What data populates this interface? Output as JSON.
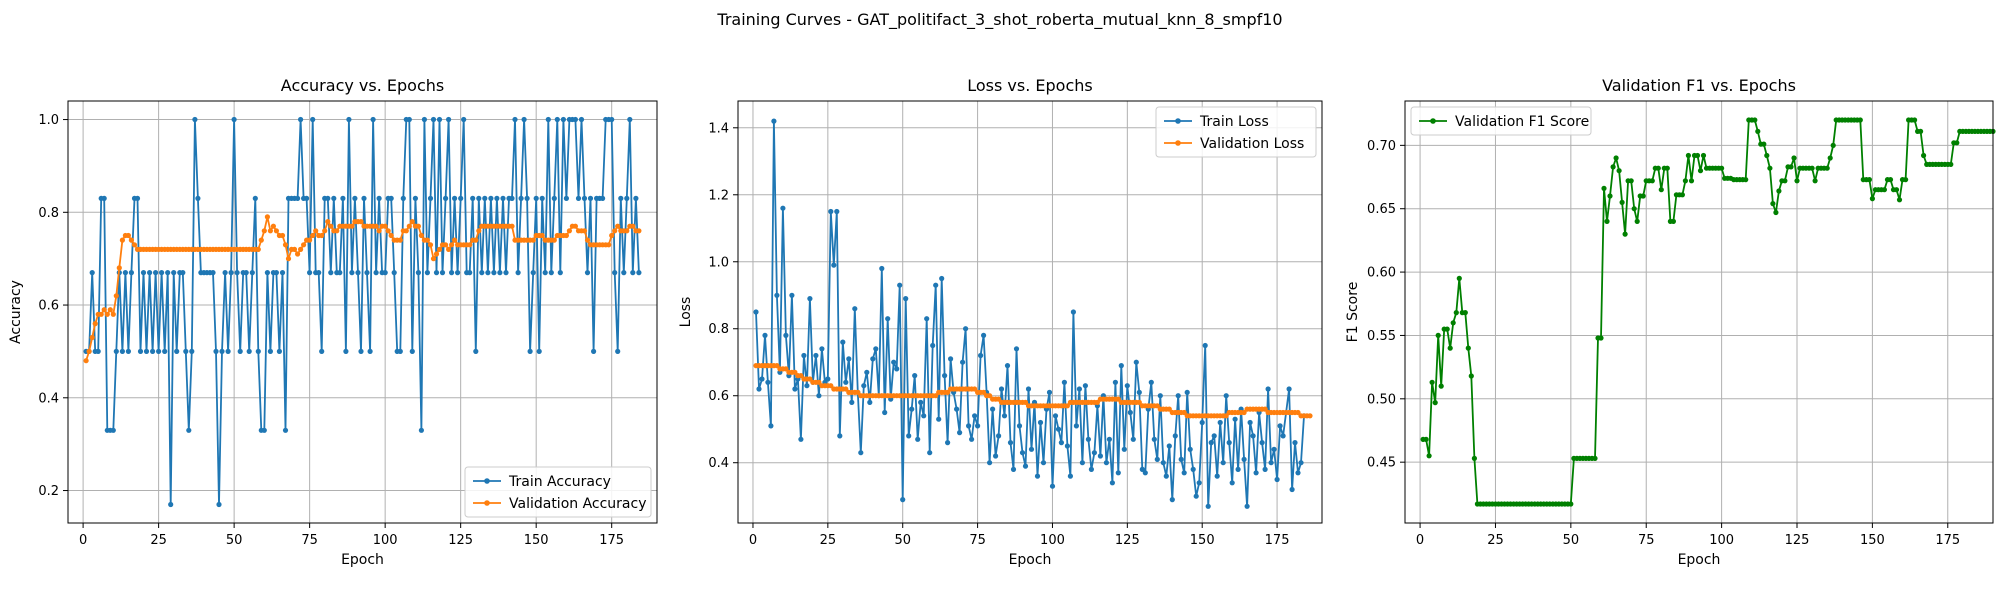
{
  "suptitle": "Training Curves - GAT_politifact_3_shot_roberta_mutual_knn_8_smpf10",
  "colors": {
    "train": "#1f77b4",
    "validation": "#ff7f0e",
    "f1": "#008000",
    "grid": "#b0b0b0"
  },
  "chart_data": [
    {
      "type": "line",
      "title": "Accuracy vs. Epochs",
      "xlabel": "Epoch",
      "ylabel": "Accuracy",
      "xlim": [
        -5,
        190
      ],
      "ylim": [
        0.13,
        1.04
      ],
      "xticks": [
        0,
        25,
        50,
        75,
        100,
        125,
        150,
        175
      ],
      "yticks": [
        0.2,
        0.4,
        0.6,
        0.8,
        1.0
      ],
      "ytick_labels": [
        "0.2",
        "0.4",
        "0.6",
        "0.8",
        "1.0"
      ],
      "grid": true,
      "legend_position": "lower-right",
      "series": [
        {
          "name": "Train Accuracy",
          "color_key": "train",
          "values": [
            0.5,
            0.5,
            0.67,
            0.5,
            0.5,
            0.83,
            0.83,
            0.33,
            0.33,
            0.33,
            0.5,
            0.67,
            0.5,
            0.67,
            0.5,
            0.67,
            0.83,
            0.83,
            0.5,
            0.67,
            0.5,
            0.67,
            0.5,
            0.67,
            0.5,
            0.67,
            0.5,
            0.67,
            0.17,
            0.67,
            0.5,
            0.67,
            0.67,
            0.5,
            0.33,
            0.5,
            1.0,
            0.83,
            0.67,
            0.67,
            0.67,
            0.67,
            0.67,
            0.5,
            0.17,
            0.5,
            0.67,
            0.5,
            0.67,
            1.0,
            0.67,
            0.5,
            0.67,
            0.67,
            0.5,
            0.67,
            0.83,
            0.5,
            0.33,
            0.33,
            0.67,
            0.5,
            0.67,
            0.67,
            0.5,
            0.67,
            0.33,
            0.83,
            0.83,
            0.83,
            0.83,
            1.0,
            0.83,
            0.83,
            0.67,
            1.0,
            0.67,
            0.67,
            0.5,
            0.83,
            0.83,
            0.67,
            0.83,
            0.67,
            0.67,
            0.83,
            0.5,
            1.0,
            0.67,
            0.83,
            0.67,
            0.5,
            0.83,
            0.67,
            0.5,
            1.0,
            0.67,
            0.83,
            0.67,
            0.67,
            0.83,
            0.83,
            0.67,
            0.5,
            0.5,
            0.83,
            1.0,
            1.0,
            0.5,
            0.83,
            0.67,
            0.33,
            1.0,
            0.67,
            0.83,
            1.0,
            0.67,
            1.0,
            0.67,
            0.83,
            1.0,
            0.67,
            0.83,
            0.67,
            0.83,
            1.0,
            0.67,
            0.67,
            0.83,
            0.5,
            0.83,
            0.67,
            0.83,
            0.67,
            0.83,
            0.67,
            0.83,
            0.67,
            0.83,
            0.67,
            0.83,
            0.83,
            1.0,
            0.67,
            0.83,
            1.0,
            0.83,
            0.5,
            0.67,
            0.83,
            0.5,
            0.83,
            0.67,
            1.0,
            0.67,
            0.83,
            1.0,
            0.67,
            1.0,
            0.83,
            1.0,
            1.0,
            1.0,
            0.83,
            1.0,
            0.83,
            0.67,
            0.83,
            0.5,
            0.83,
            0.83,
            0.83,
            1.0,
            1.0,
            1.0,
            0.67,
            0.5,
            0.83,
            0.67,
            0.83,
            1.0,
            0.67,
            0.83,
            0.67
          ]
        },
        {
          "name": "Validation Accuracy",
          "color_key": "validation",
          "values": [
            0.48,
            0.5,
            0.53,
            0.56,
            0.58,
            0.58,
            0.59,
            0.58,
            0.59,
            0.58,
            0.62,
            0.68,
            0.74,
            0.75,
            0.75,
            0.74,
            0.73,
            0.72,
            0.72,
            0.72,
            0.72,
            0.72,
            0.72,
            0.72,
            0.72,
            0.72,
            0.72,
            0.72,
            0.72,
            0.72,
            0.72,
            0.72,
            0.72,
            0.72,
            0.72,
            0.72,
            0.72,
            0.72,
            0.72,
            0.72,
            0.72,
            0.72,
            0.72,
            0.72,
            0.72,
            0.72,
            0.72,
            0.72,
            0.72,
            0.72,
            0.72,
            0.72,
            0.72,
            0.72,
            0.72,
            0.72,
            0.72,
            0.72,
            0.74,
            0.76,
            0.79,
            0.76,
            0.77,
            0.76,
            0.75,
            0.75,
            0.73,
            0.7,
            0.72,
            0.72,
            0.71,
            0.72,
            0.73,
            0.74,
            0.74,
            0.75,
            0.76,
            0.75,
            0.75,
            0.76,
            0.78,
            0.77,
            0.76,
            0.76,
            0.77,
            0.77,
            0.77,
            0.77,
            0.77,
            0.78,
            0.78,
            0.78,
            0.77,
            0.77,
            0.77,
            0.77,
            0.77,
            0.76,
            0.77,
            0.77,
            0.76,
            0.75,
            0.74,
            0.74,
            0.74,
            0.76,
            0.76,
            0.77,
            0.78,
            0.77,
            0.77,
            0.75,
            0.74,
            0.74,
            0.73,
            0.7,
            0.71,
            0.72,
            0.73,
            0.73,
            0.72,
            0.73,
            0.74,
            0.73,
            0.73,
            0.73,
            0.73,
            0.73,
            0.74,
            0.74,
            0.76,
            0.77,
            0.77,
            0.77,
            0.77,
            0.77,
            0.77,
            0.77,
            0.77,
            0.77,
            0.77,
            0.77,
            0.74,
            0.74,
            0.74,
            0.74,
            0.74,
            0.74,
            0.74,
            0.75,
            0.75,
            0.75,
            0.74,
            0.74,
            0.74,
            0.74,
            0.75,
            0.75,
            0.75,
            0.75,
            0.76,
            0.77,
            0.77,
            0.76,
            0.76,
            0.76,
            0.74,
            0.73,
            0.73,
            0.73,
            0.73,
            0.73,
            0.73,
            0.73,
            0.75,
            0.76,
            0.77,
            0.76,
            0.76,
            0.76,
            0.77,
            0.77,
            0.76,
            0.76
          ]
        }
      ]
    },
    {
      "type": "line",
      "title": "Loss vs. Epochs",
      "xlabel": "Epoch",
      "ylabel": "Loss",
      "xlim": [
        -5,
        190
      ],
      "ylim": [
        0.22,
        1.48
      ],
      "xticks": [
        0,
        25,
        50,
        75,
        100,
        125,
        150,
        175
      ],
      "yticks": [
        0.4,
        0.6,
        0.8,
        1.0,
        1.2,
        1.4
      ],
      "ytick_labels": [
        "0.4",
        "0.6",
        "0.8",
        "1.0",
        "1.2",
        "1.4"
      ],
      "grid": true,
      "legend_position": "upper-right",
      "series": [
        {
          "name": "Train Loss",
          "color_key": "train",
          "values": [
            0.85,
            0.62,
            0.65,
            0.78,
            0.64,
            0.51,
            1.42,
            0.9,
            0.67,
            1.16,
            0.78,
            0.66,
            0.9,
            0.62,
            0.65,
            0.47,
            0.72,
            0.63,
            0.89,
            0.64,
            0.72,
            0.6,
            0.74,
            0.64,
            0.65,
            1.15,
            0.99,
            1.15,
            0.48,
            0.76,
            0.64,
            0.71,
            0.58,
            0.86,
            0.61,
            0.43,
            0.63,
            0.67,
            0.58,
            0.71,
            0.74,
            0.6,
            0.98,
            0.55,
            0.83,
            0.59,
            0.7,
            0.68,
            0.93,
            0.29,
            0.89,
            0.48,
            0.56,
            0.66,
            0.47,
            0.58,
            0.54,
            0.83,
            0.43,
            0.75,
            0.93,
            0.53,
            0.95,
            0.66,
            0.46,
            0.71,
            0.61,
            0.56,
            0.49,
            0.7,
            0.8,
            0.51,
            0.47,
            0.54,
            0.51,
            0.72,
            0.78,
            0.61,
            0.4,
            0.56,
            0.42,
            0.48,
            0.62,
            0.54,
            0.69,
            0.46,
            0.38,
            0.74,
            0.51,
            0.43,
            0.39,
            0.62,
            0.44,
            0.58,
            0.36,
            0.52,
            0.4,
            0.56,
            0.61,
            0.33,
            0.54,
            0.5,
            0.46,
            0.64,
            0.45,
            0.36,
            0.85,
            0.51,
            0.62,
            0.4,
            0.63,
            0.47,
            0.38,
            0.43,
            0.57,
            0.42,
            0.6,
            0.4,
            0.47,
            0.34,
            0.64,
            0.37,
            0.69,
            0.44,
            0.63,
            0.55,
            0.47,
            0.7,
            0.61,
            0.38,
            0.37,
            0.56,
            0.64,
            0.47,
            0.41,
            0.6,
            0.4,
            0.36,
            0.45,
            0.29,
            0.48,
            0.6,
            0.41,
            0.37,
            0.61,
            0.44,
            0.38,
            0.3,
            0.34,
            0.52,
            0.75,
            0.27,
            0.46,
            0.48,
            0.36,
            0.52,
            0.4,
            0.6,
            0.46,
            0.34,
            0.53,
            0.38,
            0.56,
            0.41,
            0.27,
            0.52,
            0.48,
            0.37,
            0.55,
            0.46,
            0.38,
            0.62,
            0.4,
            0.44,
            0.35,
            0.51,
            0.48,
            0.55,
            0.62,
            0.32,
            0.46,
            0.37,
            0.4,
            0.54
          ]
        },
        {
          "name": "Validation Loss",
          "color_key": "validation",
          "values": [
            0.69,
            0.69,
            0.69,
            0.69,
            0.69,
            0.69,
            0.69,
            0.69,
            0.68,
            0.68,
            0.68,
            0.67,
            0.67,
            0.67,
            0.66,
            0.66,
            0.65,
            0.65,
            0.65,
            0.64,
            0.64,
            0.64,
            0.63,
            0.63,
            0.63,
            0.63,
            0.62,
            0.62,
            0.62,
            0.62,
            0.62,
            0.61,
            0.61,
            0.61,
            0.61,
            0.6,
            0.6,
            0.6,
            0.6,
            0.6,
            0.6,
            0.6,
            0.6,
            0.6,
            0.6,
            0.6,
            0.6,
            0.6,
            0.6,
            0.6,
            0.6,
            0.6,
            0.6,
            0.6,
            0.6,
            0.6,
            0.6,
            0.6,
            0.6,
            0.6,
            0.6,
            0.61,
            0.61,
            0.61,
            0.61,
            0.62,
            0.62,
            0.62,
            0.62,
            0.62,
            0.62,
            0.62,
            0.62,
            0.62,
            0.61,
            0.61,
            0.61,
            0.6,
            0.6,
            0.59,
            0.59,
            0.59,
            0.58,
            0.58,
            0.58,
            0.58,
            0.58,
            0.58,
            0.58,
            0.58,
            0.58,
            0.57,
            0.57,
            0.57,
            0.57,
            0.57,
            0.57,
            0.57,
            0.57,
            0.57,
            0.57,
            0.57,
            0.57,
            0.57,
            0.57,
            0.58,
            0.58,
            0.58,
            0.58,
            0.58,
            0.58,
            0.58,
            0.58,
            0.58,
            0.58,
            0.59,
            0.59,
            0.59,
            0.59,
            0.59,
            0.59,
            0.59,
            0.58,
            0.58,
            0.58,
            0.58,
            0.58,
            0.58,
            0.58,
            0.57,
            0.57,
            0.57,
            0.57,
            0.57,
            0.57,
            0.56,
            0.56,
            0.56,
            0.56,
            0.55,
            0.55,
            0.55,
            0.55,
            0.55,
            0.54,
            0.54,
            0.54,
            0.54,
            0.54,
            0.54,
            0.54,
            0.54,
            0.54,
            0.54,
            0.54,
            0.54,
            0.54,
            0.54,
            0.55,
            0.55,
            0.55,
            0.55,
            0.55,
            0.55,
            0.56,
            0.56,
            0.56,
            0.56,
            0.56,
            0.56,
            0.56,
            0.55,
            0.55,
            0.55,
            0.55,
            0.55,
            0.55,
            0.55,
            0.55,
            0.55,
            0.55,
            0.55,
            0.54,
            0.54,
            0.54,
            0.54
          ]
        }
      ]
    },
    {
      "type": "line",
      "title": "Validation F1 vs. Epochs",
      "xlabel": "Epoch",
      "ylabel": "F1 Score",
      "xlim": [
        -5,
        190
      ],
      "ylim": [
        0.402,
        0.735
      ],
      "xticks": [
        0,
        25,
        50,
        75,
        100,
        125,
        150,
        175
      ],
      "yticks": [
        0.45,
        0.5,
        0.55,
        0.6,
        0.65,
        0.7
      ],
      "ytick_labels": [
        "0.45",
        "0.50",
        "0.55",
        "0.60",
        "0.65",
        "0.70"
      ],
      "grid": true,
      "legend_position": "upper-left",
      "series": [
        {
          "name": "Validation F1 Score",
          "color_key": "f1",
          "values": [
            0.468,
            0.468,
            0.455,
            0.513,
            0.497,
            0.55,
            0.51,
            0.555,
            0.555,
            0.54,
            0.56,
            0.568,
            0.595,
            0.568,
            0.568,
            0.54,
            0.518,
            0.453,
            0.417,
            0.417,
            0.417,
            0.417,
            0.417,
            0.417,
            0.417,
            0.417,
            0.417,
            0.417,
            0.417,
            0.417,
            0.417,
            0.417,
            0.417,
            0.417,
            0.417,
            0.417,
            0.417,
            0.417,
            0.417,
            0.417,
            0.417,
            0.417,
            0.417,
            0.417,
            0.417,
            0.417,
            0.417,
            0.417,
            0.417,
            0.417,
            0.453,
            0.453,
            0.453,
            0.453,
            0.453,
            0.453,
            0.453,
            0.453,
            0.548,
            0.548,
            0.666,
            0.64,
            0.66,
            0.683,
            0.69,
            0.68,
            0.655,
            0.63,
            0.672,
            0.672,
            0.65,
            0.64,
            0.66,
            0.66,
            0.672,
            0.672,
            0.672,
            0.682,
            0.682,
            0.665,
            0.682,
            0.682,
            0.64,
            0.64,
            0.661,
            0.661,
            0.661,
            0.672,
            0.692,
            0.672,
            0.692,
            0.692,
            0.68,
            0.692,
            0.682,
            0.682,
            0.682,
            0.682,
            0.682,
            0.682,
            0.674,
            0.674,
            0.674,
            0.673,
            0.673,
            0.673,
            0.673,
            0.673,
            0.72,
            0.72,
            0.72,
            0.711,
            0.701,
            0.701,
            0.692,
            0.682,
            0.654,
            0.647,
            0.664,
            0.672,
            0.672,
            0.683,
            0.683,
            0.69,
            0.672,
            0.682,
            0.682,
            0.682,
            0.682,
            0.682,
            0.672,
            0.682,
            0.682,
            0.682,
            0.682,
            0.69,
            0.7,
            0.72,
            0.72,
            0.72,
            0.72,
            0.72,
            0.72,
            0.72,
            0.72,
            0.72,
            0.673,
            0.673,
            0.673,
            0.658,
            0.665,
            0.665,
            0.665,
            0.665,
            0.673,
            0.673,
            0.665,
            0.665,
            0.657,
            0.673,
            0.673,
            0.72,
            0.72,
            0.72,
            0.711,
            0.711,
            0.692,
            0.685,
            0.685,
            0.685,
            0.685,
            0.685,
            0.685,
            0.685,
            0.685,
            0.685,
            0.702,
            0.702,
            0.711,
            0.711,
            0.711,
            0.711,
            0.711,
            0.711,
            0.711,
            0.711,
            0.711,
            0.711,
            0.711,
            0.711
          ]
        }
      ]
    }
  ]
}
